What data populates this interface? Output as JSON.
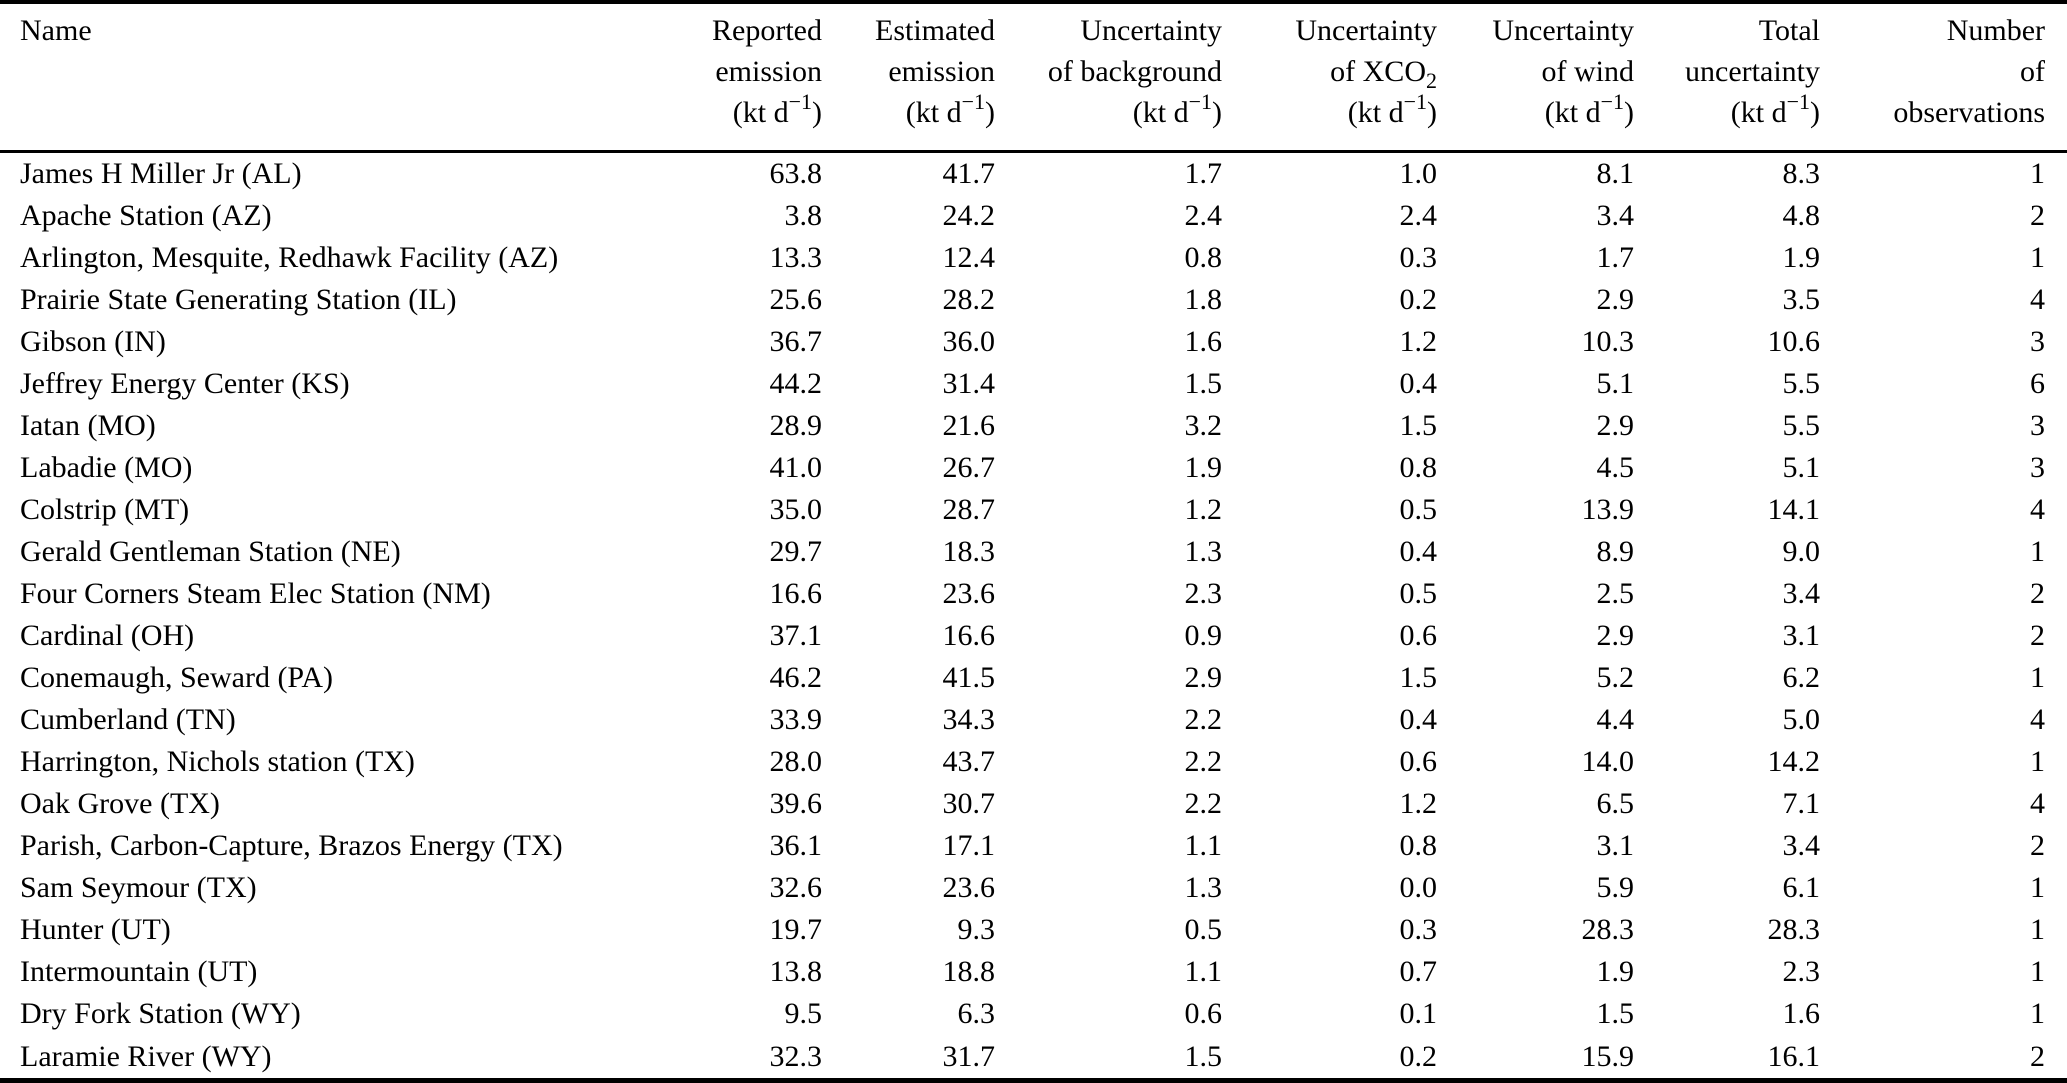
{
  "header": {
    "name": "Name",
    "unit": {
      "pre": "(kt d",
      "sup": "−1",
      "post": ")"
    },
    "c1": {
      "l1": "Reported",
      "l2": "emission"
    },
    "c2": {
      "l1": "Estimated",
      "l2": "emission"
    },
    "c3": {
      "l1": "Uncertainty",
      "l2": "of background"
    },
    "c4": {
      "l1": "Uncertainty",
      "l2_pre": "of XCO",
      "l2_sub": "2"
    },
    "c5": {
      "l1": "Uncertainty",
      "l2": "of wind"
    },
    "c6": {
      "l1": "Total",
      "l2": "uncertainty"
    },
    "c7": {
      "l1": "Number",
      "l2": "of",
      "l3": "observations"
    }
  },
  "column_cell_names": [
    "cell-name",
    "cell-reported-emission",
    "cell-estimated-emission",
    "cell-uncertainty-background",
    "cell-uncertainty-xco2",
    "cell-uncertainty-wind",
    "cell-total-uncertainty",
    "cell-number-observations"
  ],
  "rows": [
    [
      "James H Miller Jr (AL)",
      "63.8",
      "41.7",
      "1.7",
      "1.0",
      "8.1",
      "8.3",
      "1"
    ],
    [
      "Apache Station (AZ)",
      "3.8",
      "24.2",
      "2.4",
      "2.4",
      "3.4",
      "4.8",
      "2"
    ],
    [
      "Arlington, Mesquite, Redhawk Facility (AZ)",
      "13.3",
      "12.4",
      "0.8",
      "0.3",
      "1.7",
      "1.9",
      "1"
    ],
    [
      "Prairie State Generating Station (IL)",
      "25.6",
      "28.2",
      "1.8",
      "0.2",
      "2.9",
      "3.5",
      "4"
    ],
    [
      "Gibson (IN)",
      "36.7",
      "36.0",
      "1.6",
      "1.2",
      "10.3",
      "10.6",
      "3"
    ],
    [
      "Jeffrey Energy Center (KS)",
      "44.2",
      "31.4",
      "1.5",
      "0.4",
      "5.1",
      "5.5",
      "6"
    ],
    [
      "Iatan (MO)",
      "28.9",
      "21.6",
      "3.2",
      "1.5",
      "2.9",
      "5.5",
      "3"
    ],
    [
      "Labadie (MO)",
      "41.0",
      "26.7",
      "1.9",
      "0.8",
      "4.5",
      "5.1",
      "3"
    ],
    [
      "Colstrip (MT)",
      "35.0",
      "28.7",
      "1.2",
      "0.5",
      "13.9",
      "14.1",
      "4"
    ],
    [
      "Gerald Gentleman Station (NE)",
      "29.7",
      "18.3",
      "1.3",
      "0.4",
      "8.9",
      "9.0",
      "1"
    ],
    [
      "Four Corners Steam Elec Station (NM)",
      "16.6",
      "23.6",
      "2.3",
      "0.5",
      "2.5",
      "3.4",
      "2"
    ],
    [
      "Cardinal (OH)",
      "37.1",
      "16.6",
      "0.9",
      "0.6",
      "2.9",
      "3.1",
      "2"
    ],
    [
      "Conemaugh, Seward (PA)",
      "46.2",
      "41.5",
      "2.9",
      "1.5",
      "5.2",
      "6.2",
      "1"
    ],
    [
      "Cumberland (TN)",
      "33.9",
      "34.3",
      "2.2",
      "0.4",
      "4.4",
      "5.0",
      "4"
    ],
    [
      "Harrington, Nichols station (TX)",
      "28.0",
      "43.7",
      "2.2",
      "0.6",
      "14.0",
      "14.2",
      "1"
    ],
    [
      "Oak Grove (TX)",
      "39.6",
      "30.7",
      "2.2",
      "1.2",
      "6.5",
      "7.1",
      "4"
    ],
    [
      "Parish, Carbon-Capture, Brazos Energy (TX)",
      "36.1",
      "17.1",
      "1.1",
      "0.8",
      "3.1",
      "3.4",
      "2"
    ],
    [
      "Sam Seymour (TX)",
      "32.6",
      "23.6",
      "1.3",
      "0.0",
      "5.9",
      "6.1",
      "1"
    ],
    [
      "Hunter (UT)",
      "19.7",
      "9.3",
      "0.5",
      "0.3",
      "28.3",
      "28.3",
      "1"
    ],
    [
      "Intermountain (UT)",
      "13.8",
      "18.8",
      "1.1",
      "0.7",
      "1.9",
      "2.3",
      "1"
    ],
    [
      "Dry Fork Station (WY)",
      "9.5",
      "6.3",
      "0.6",
      "0.1",
      "1.5",
      "1.6",
      "1"
    ],
    [
      "Laramie River (WY)",
      "32.3",
      "31.7",
      "1.5",
      "0.2",
      "15.9",
      "16.1",
      "2"
    ]
  ],
  "colors": {
    "text": "#000000",
    "background": "#ffffff",
    "rule": "#000000"
  }
}
